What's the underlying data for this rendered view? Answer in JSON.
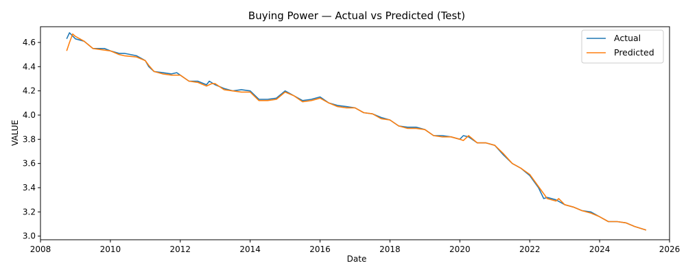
{
  "chart_data": {
    "type": "line",
    "title": "Buying Power — Actual vs Predicted (Test)",
    "xlabel": "Date",
    "ylabel": "VALUE",
    "xlim": [
      2008.0,
      2026.0
    ],
    "ylim": [
      2.97,
      4.73
    ],
    "x_ticks": [
      2008,
      2010,
      2012,
      2014,
      2016,
      2018,
      2020,
      2022,
      2024,
      2026
    ],
    "x_tick_labels": [
      "2008",
      "2010",
      "2012",
      "2014",
      "2016",
      "2018",
      "2020",
      "2022",
      "2024",
      "2026"
    ],
    "y_ticks": [
      3.0,
      3.2,
      3.4,
      3.6,
      3.8,
      4.0,
      4.2,
      4.4,
      4.6
    ],
    "y_tick_labels": [
      "3.0",
      "3.2",
      "3.4",
      "3.6",
      "3.8",
      "4.0",
      "4.2",
      "4.4",
      "4.6"
    ],
    "legend_position": "top-right",
    "grid": false,
    "series": [
      {
        "name": "Actual",
        "color": "#1f77b4",
        "points": [
          [
            2008.75,
            4.63
          ],
          [
            2008.83,
            4.68
          ],
          [
            2009.0,
            4.63
          ],
          [
            2009.25,
            4.61
          ],
          [
            2009.5,
            4.55
          ],
          [
            2009.75,
            4.55
          ],
          [
            2009.83,
            4.55
          ],
          [
            2010.0,
            4.53
          ],
          [
            2010.25,
            4.51
          ],
          [
            2010.4,
            4.51
          ],
          [
            2010.75,
            4.49
          ],
          [
            2011.0,
            4.45
          ],
          [
            2011.1,
            4.4
          ],
          [
            2011.25,
            4.36
          ],
          [
            2011.5,
            4.35
          ],
          [
            2011.75,
            4.34
          ],
          [
            2011.9,
            4.35
          ],
          [
            2012.0,
            4.33
          ],
          [
            2012.25,
            4.28
          ],
          [
            2012.5,
            4.28
          ],
          [
            2012.75,
            4.25
          ],
          [
            2012.83,
            4.28
          ],
          [
            2013.0,
            4.25
          ],
          [
            2013.25,
            4.22
          ],
          [
            2013.5,
            4.2
          ],
          [
            2013.75,
            4.21
          ],
          [
            2014.0,
            4.2
          ],
          [
            2014.25,
            4.13
          ],
          [
            2014.5,
            4.13
          ],
          [
            2014.75,
            4.14
          ],
          [
            2015.0,
            4.2
          ],
          [
            2015.25,
            4.16
          ],
          [
            2015.5,
            4.12
          ],
          [
            2015.75,
            4.13
          ],
          [
            2016.0,
            4.15
          ],
          [
            2016.25,
            4.1
          ],
          [
            2016.5,
            4.08
          ],
          [
            2016.75,
            4.07
          ],
          [
            2017.0,
            4.06
          ],
          [
            2017.25,
            4.02
          ],
          [
            2017.5,
            4.01
          ],
          [
            2017.75,
            3.98
          ],
          [
            2018.0,
            3.96
          ],
          [
            2018.25,
            3.91
          ],
          [
            2018.5,
            3.9
          ],
          [
            2018.75,
            3.9
          ],
          [
            2019.0,
            3.88
          ],
          [
            2019.25,
            3.83
          ],
          [
            2019.5,
            3.83
          ],
          [
            2019.75,
            3.82
          ],
          [
            2020.0,
            3.8
          ],
          [
            2020.1,
            3.83
          ],
          [
            2020.25,
            3.82
          ],
          [
            2020.5,
            3.77
          ],
          [
            2020.75,
            3.77
          ],
          [
            2021.0,
            3.75
          ],
          [
            2021.25,
            3.67
          ],
          [
            2021.5,
            3.6
          ],
          [
            2021.75,
            3.56
          ],
          [
            2022.0,
            3.5
          ],
          [
            2022.25,
            3.4
          ],
          [
            2022.4,
            3.31
          ],
          [
            2022.5,
            3.32
          ],
          [
            2022.75,
            3.3
          ],
          [
            2023.0,
            3.26
          ],
          [
            2023.25,
            3.24
          ],
          [
            2023.5,
            3.21
          ],
          [
            2023.75,
            3.2
          ],
          [
            2024.0,
            3.16
          ],
          [
            2024.25,
            3.12
          ],
          [
            2024.5,
            3.12
          ],
          [
            2024.75,
            3.11
          ],
          [
            2025.0,
            3.08
          ],
          [
            2025.33,
            3.05
          ]
        ]
      },
      {
        "name": "Predicted",
        "color": "#ff7f0e",
        "points": [
          [
            2008.75,
            4.53
          ],
          [
            2008.83,
            4.6
          ],
          [
            2008.92,
            4.67
          ],
          [
            2009.0,
            4.65
          ],
          [
            2009.25,
            4.61
          ],
          [
            2009.5,
            4.55
          ],
          [
            2009.75,
            4.54
          ],
          [
            2010.0,
            4.53
          ],
          [
            2010.25,
            4.5
          ],
          [
            2010.4,
            4.49
          ],
          [
            2010.75,
            4.48
          ],
          [
            2011.0,
            4.45
          ],
          [
            2011.1,
            4.41
          ],
          [
            2011.25,
            4.36
          ],
          [
            2011.5,
            4.34
          ],
          [
            2011.75,
            4.33
          ],
          [
            2012.0,
            4.33
          ],
          [
            2012.25,
            4.28
          ],
          [
            2012.5,
            4.27
          ],
          [
            2012.75,
            4.24
          ],
          [
            2012.9,
            4.26
          ],
          [
            2013.0,
            4.26
          ],
          [
            2013.25,
            4.21
          ],
          [
            2013.5,
            4.2
          ],
          [
            2013.75,
            4.19
          ],
          [
            2014.0,
            4.19
          ],
          [
            2014.25,
            4.12
          ],
          [
            2014.5,
            4.12
          ],
          [
            2014.75,
            4.13
          ],
          [
            2015.0,
            4.19
          ],
          [
            2015.25,
            4.16
          ],
          [
            2015.5,
            4.11
          ],
          [
            2015.75,
            4.12
          ],
          [
            2016.0,
            4.14
          ],
          [
            2016.25,
            4.1
          ],
          [
            2016.5,
            4.07
          ],
          [
            2016.75,
            4.06
          ],
          [
            2017.0,
            4.06
          ],
          [
            2017.25,
            4.02
          ],
          [
            2017.5,
            4.01
          ],
          [
            2017.75,
            3.97
          ],
          [
            2018.0,
            3.96
          ],
          [
            2018.25,
            3.91
          ],
          [
            2018.5,
            3.89
          ],
          [
            2018.75,
            3.89
          ],
          [
            2019.0,
            3.88
          ],
          [
            2019.25,
            3.83
          ],
          [
            2019.5,
            3.82
          ],
          [
            2019.75,
            3.82
          ],
          [
            2020.0,
            3.8
          ],
          [
            2020.1,
            3.79
          ],
          [
            2020.25,
            3.83
          ],
          [
            2020.5,
            3.77
          ],
          [
            2020.75,
            3.77
          ],
          [
            2021.0,
            3.75
          ],
          [
            2021.25,
            3.68
          ],
          [
            2021.5,
            3.6
          ],
          [
            2021.75,
            3.56
          ],
          [
            2022.0,
            3.51
          ],
          [
            2022.25,
            3.41
          ],
          [
            2022.5,
            3.31
          ],
          [
            2022.75,
            3.29
          ],
          [
            2022.83,
            3.31
          ],
          [
            2023.0,
            3.26
          ],
          [
            2023.25,
            3.24
          ],
          [
            2023.5,
            3.21
          ],
          [
            2023.75,
            3.19
          ],
          [
            2024.0,
            3.16
          ],
          [
            2024.25,
            3.12
          ],
          [
            2024.5,
            3.12
          ],
          [
            2024.75,
            3.11
          ],
          [
            2025.0,
            3.08
          ],
          [
            2025.33,
            3.05
          ]
        ]
      }
    ]
  }
}
